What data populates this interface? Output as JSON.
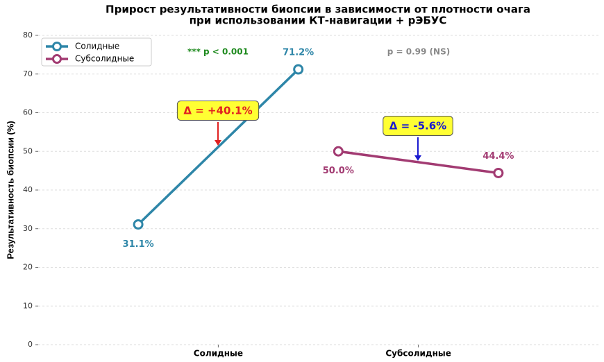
{
  "chart_data": {
    "type": "line",
    "title": [
      "Прирост результативности биопсии в зависимости от плотности очага",
      "при использовании КТ-навигации + рЭБУС"
    ],
    "y_label": "Результативность биопсии (%)",
    "xlim": [
      -0.9,
      1.9
    ],
    "xticks": [
      {
        "value": 0,
        "label": "Солидные"
      },
      {
        "value": 1,
        "label": "Субсолидные"
      }
    ],
    "ylim": [
      0,
      80
    ],
    "yticks": [
      0,
      10,
      20,
      30,
      40,
      50,
      60,
      70,
      80
    ],
    "grid": true,
    "legend": "upper left",
    "series": [
      {
        "name": "Солидные",
        "color": "#2e86a8",
        "x": [
          -0.4,
          0.4
        ],
        "values": [
          31.1,
          71.2
        ],
        "value_labels": [
          "31.1%",
          "71.2%"
        ]
      },
      {
        "name": "Субсолидные",
        "color": "#a23b72",
        "x": [
          0.6,
          1.4
        ],
        "values": [
          50.0,
          44.4
        ],
        "value_labels": [
          "50.0%",
          "44.4%"
        ]
      }
    ],
    "annotations": [
      {
        "text": "Δ = +40.1%",
        "color": "#e02020"
      },
      {
        "text": "Δ = -5.6%",
        "color": "#1a1ad0"
      },
      {
        "text": "*** p < 0.001",
        "color": "#1e8a1e"
      },
      {
        "text": "p = 0.99 (NS)",
        "color": "#888888"
      }
    ]
  }
}
